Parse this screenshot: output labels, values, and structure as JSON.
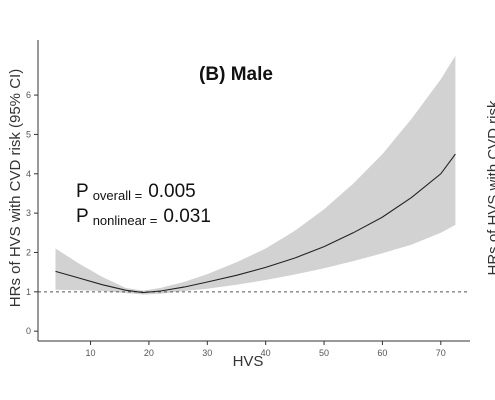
{
  "chart_data": {
    "type": "line",
    "title": "(B) Male",
    "xlabel": "HVS",
    "ylabel": "HRs of HVS with CVD risk (95% CI)",
    "xlim": [
      1,
      75
    ],
    "ylim": [
      -0.25,
      7.4
    ],
    "x_ticks": [
      10,
      20,
      30,
      40,
      50,
      60,
      70
    ],
    "y_ticks": [
      0,
      1,
      2,
      3,
      4,
      5,
      6
    ],
    "grid": false,
    "reference_line": {
      "y": 1,
      "style": "dashed"
    },
    "series": [
      {
        "x": [
          4,
          8,
          12,
          16,
          19,
          22,
          26,
          30,
          35,
          40,
          45,
          50,
          55,
          60,
          65,
          70,
          72.5
        ],
        "y": [
          1.52,
          1.35,
          1.18,
          1.04,
          0.98,
          1.02,
          1.12,
          1.25,
          1.42,
          1.62,
          1.86,
          2.15,
          2.5,
          2.9,
          3.4,
          4.0,
          4.5
        ],
        "lower": [
          1.05,
          1.04,
          1.02,
          0.97,
          0.93,
          0.95,
          1.02,
          1.08,
          1.18,
          1.3,
          1.44,
          1.6,
          1.78,
          1.98,
          2.2,
          2.5,
          2.7
        ],
        "upper": [
          2.1,
          1.72,
          1.38,
          1.1,
          1.03,
          1.1,
          1.25,
          1.45,
          1.75,
          2.1,
          2.55,
          3.1,
          3.75,
          4.5,
          5.4,
          6.4,
          7.0
        ]
      }
    ],
    "annotations": {
      "p_overall": {
        "prefix": "P",
        "subscript": "overall =",
        "value": "0.005"
      },
      "p_nonlinear": {
        "prefix": "P",
        "subscript": "nonlinear =",
        "value": "0.031"
      }
    },
    "adjacent_panel_fragment": "HRs of HVS with CVD risk",
    "colors": {
      "ci_band": "#d2d2d2",
      "curve": "#222222",
      "reference": "#555555",
      "axis": "#333333"
    }
  }
}
